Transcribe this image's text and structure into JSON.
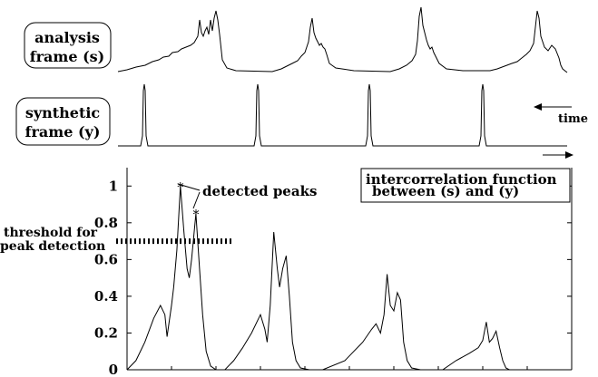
{
  "labels": {
    "analysis_line1": "analysis",
    "analysis_line2": "frame (s)",
    "synthetic_line1": "synthetic",
    "synthetic_line2": "frame (y)",
    "time": "time",
    "detected_peaks": "detected peaks",
    "threshold_line1": "threshold for",
    "threshold_line2": "peak detection",
    "legend_line1": "intercorrelation function",
    "legend_line2": "between (s) and (y)"
  },
  "chart_data": {
    "type": "line",
    "title": "",
    "xlabel": "",
    "ylabel": "",
    "ylim": [
      0,
      1.1
    ],
    "y_ticks": [
      "0",
      "0.2",
      "0.4",
      "0.6",
      "0.8",
      "1"
    ],
    "threshold": 0.7,
    "detected_peaks": [
      {
        "x": 0.12,
        "y": 1.0
      },
      {
        "x": 0.155,
        "y": 0.85
      }
    ],
    "series": [
      {
        "x": [
          0.0,
          0.02,
          0.04,
          0.06,
          0.075,
          0.085,
          0.09,
          0.1,
          0.105,
          0.112,
          0.12,
          0.128,
          0.135,
          0.14,
          0.145,
          0.155,
          0.163,
          0.17,
          0.178,
          0.188,
          0.2,
          0.22,
          0.24,
          0.26,
          0.28,
          0.3,
          0.31,
          0.315,
          0.322,
          0.33,
          0.338,
          0.343,
          0.35,
          0.358,
          0.365,
          0.372,
          0.38,
          0.39,
          0.41,
          0.44,
          0.49,
          0.51,
          0.53,
          0.55,
          0.56,
          0.57,
          0.578,
          0.585,
          0.592,
          0.6,
          0.608,
          0.615,
          0.622,
          0.63,
          0.64,
          0.66,
          0.71,
          0.74,
          0.77,
          0.79,
          0.8,
          0.808,
          0.815,
          0.822,
          0.83,
          0.838,
          0.845,
          0.852,
          0.86,
          0.87,
          0.89
        ],
        "y": [
          0.0,
          0.05,
          0.15,
          0.28,
          0.35,
          0.3,
          0.18,
          0.35,
          0.45,
          0.65,
          1.0,
          0.75,
          0.55,
          0.5,
          0.6,
          0.85,
          0.55,
          0.3,
          0.1,
          0.02,
          0.0,
          0.0,
          0.05,
          0.12,
          0.2,
          0.3,
          0.22,
          0.15,
          0.35,
          0.75,
          0.55,
          0.45,
          0.55,
          0.62,
          0.4,
          0.15,
          0.05,
          0.01,
          0.0,
          0.0,
          0.05,
          0.1,
          0.15,
          0.22,
          0.25,
          0.2,
          0.3,
          0.52,
          0.35,
          0.32,
          0.42,
          0.38,
          0.15,
          0.05,
          0.01,
          0.0,
          0.0,
          0.05,
          0.09,
          0.12,
          0.16,
          0.26,
          0.15,
          0.17,
          0.21,
          0.12,
          0.05,
          0.01,
          0.0,
          0.0,
          0.0
        ]
      }
    ]
  }
}
